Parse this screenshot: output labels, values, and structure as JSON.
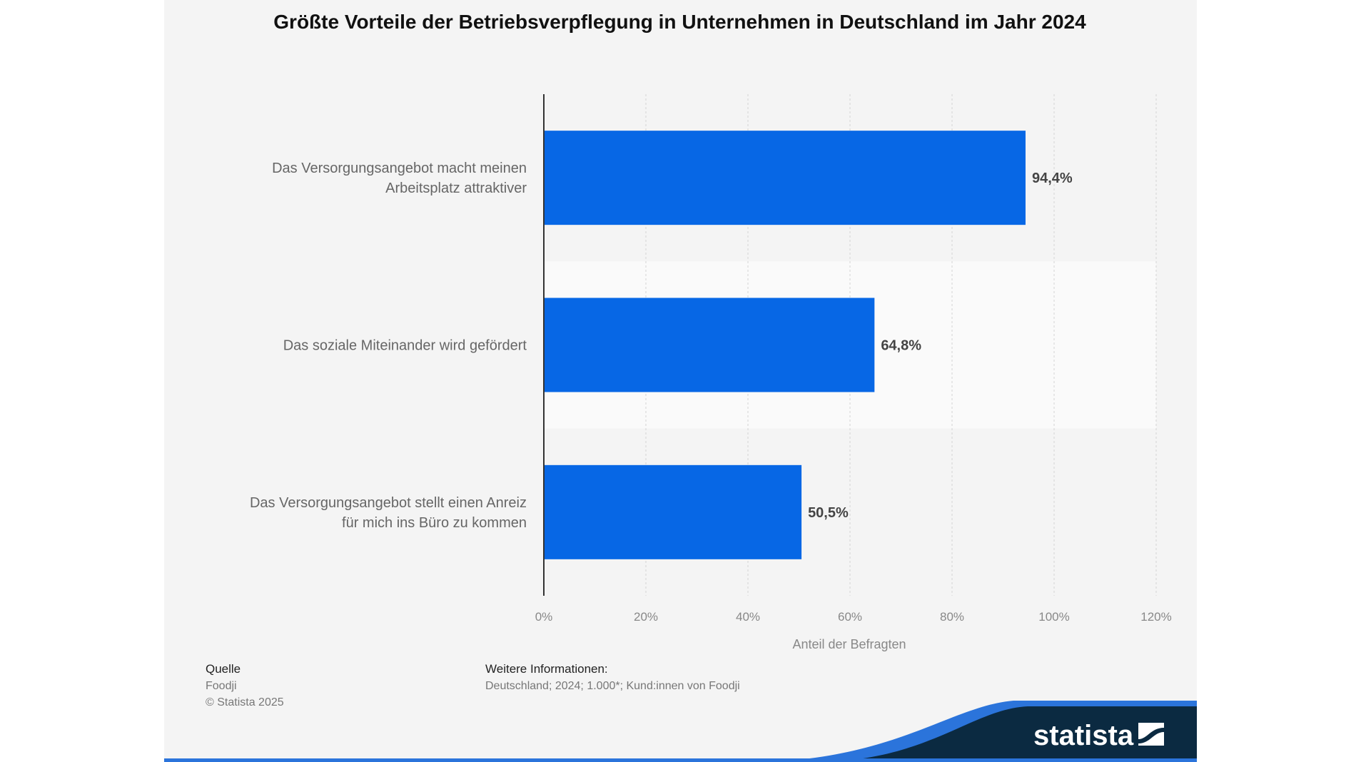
{
  "title": "Größte Vorteile der Betriebsverpflegung in Unternehmen in Deutschland im Jahr 2024",
  "chart_data": {
    "type": "bar",
    "orientation": "horizontal",
    "title": "Größte Vorteile der Betriebsverpflegung in Unternehmen in Deutschland im Jahr 2024",
    "categories": [
      [
        "Das Versorgungsangebot macht meinen",
        "Arbeitsplatz attraktiver"
      ],
      [
        "Das soziale Miteinander wird gefördert"
      ],
      [
        "Das Versorgungsangebot stellt einen Anreiz",
        "für mich ins Büro zu kommen"
      ]
    ],
    "values": [
      94.4,
      64.8,
      50.5
    ],
    "data_labels": [
      "94,4%",
      "64,8%",
      "50,5%"
    ],
    "xlabel": "Anteil der Befragten",
    "xlim": [
      0,
      120
    ],
    "x_ticks": [
      0,
      20,
      40,
      60,
      80,
      100,
      120
    ],
    "x_tick_labels": [
      "0%",
      "20%",
      "40%",
      "60%",
      "80%",
      "100%",
      "120%"
    ],
    "grid": "vertical dashed",
    "bar_color": "#0767e5"
  },
  "footer": {
    "source_heading": "Quelle",
    "source": "Foodji",
    "copyright": "© Statista 2025",
    "info_heading": "Weitere Informationen:",
    "info": "Deutschland; 2024; 1.000*; Kund:innen von Foodji"
  },
  "logo": {
    "text": "statista",
    "navy": "#0b2a41",
    "blue": "#2b74db"
  }
}
